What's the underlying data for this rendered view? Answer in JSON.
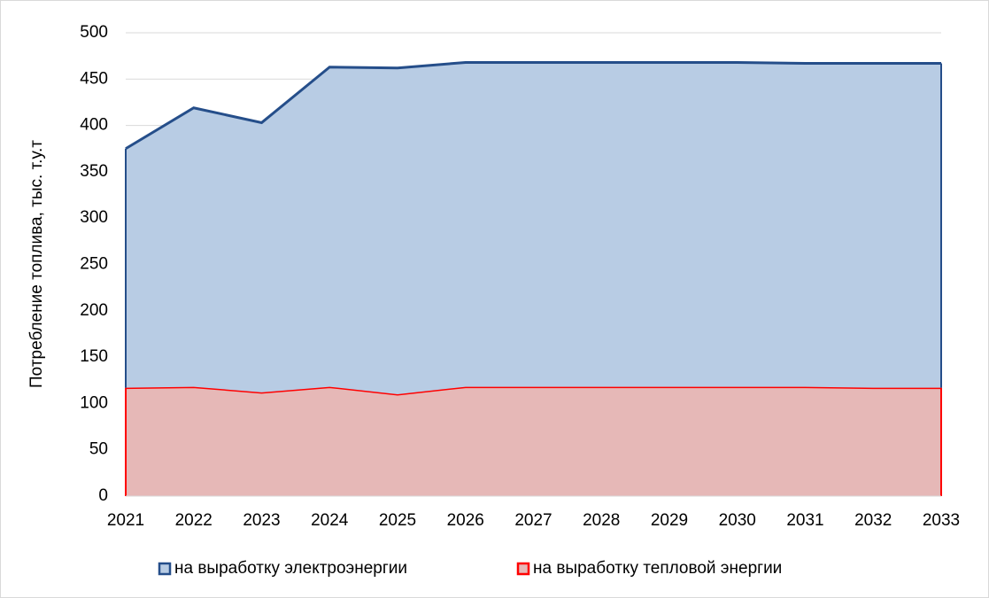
{
  "chart_data": {
    "type": "stacked_area",
    "y_axis_label": "Потребление топлива, тыс. т.у.т",
    "categories": [
      "2021",
      "2022",
      "2023",
      "2024",
      "2025",
      "2026",
      "2027",
      "2028",
      "2029",
      "2030",
      "2031",
      "2032",
      "2033"
    ],
    "series": [
      {
        "name": "на выработку тепловой энергии",
        "color": "#ff0000",
        "fill": "#e6b8b7",
        "values": [
          117,
          118,
          112,
          118,
          110,
          118,
          118,
          118,
          118,
          118,
          118,
          117,
          117
        ]
      },
      {
        "name": "на выработку электроэнергии",
        "color": "#254e8a",
        "fill": "#b8cce4",
        "values": [
          258,
          301,
          291,
          345,
          352,
          350,
          350,
          350,
          350,
          350,
          349,
          350,
          350
        ]
      }
    ],
    "ylim": [
      0,
      500
    ],
    "yticks": [
      0,
      50,
      100,
      150,
      200,
      250,
      300,
      350,
      400,
      450,
      500
    ],
    "grid": true
  }
}
